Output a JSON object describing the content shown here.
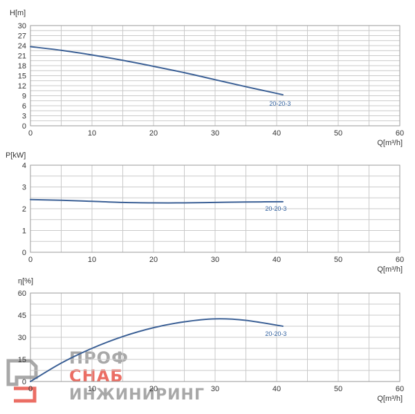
{
  "chart_data": [
    {
      "type": "line",
      "ylabel": "H[m]",
      "xlabel": "Q[m³/h]",
      "xlim": [
        0,
        60
      ],
      "ylim": [
        0,
        30
      ],
      "xticks": [
        0,
        10,
        20,
        30,
        40,
        50,
        60
      ],
      "yticks": [
        0,
        3,
        6,
        9,
        12,
        15,
        18,
        21,
        24,
        27,
        30
      ],
      "grid": true,
      "series": [
        {
          "name": "20-20-3",
          "color": "#3a5f95",
          "x": [
            0,
            5,
            10,
            15,
            20,
            25,
            30,
            35,
            41
          ],
          "y": [
            23.7,
            22.6,
            21.2,
            19.6,
            17.8,
            15.9,
            13.8,
            11.7,
            9.3
          ]
        }
      ]
    },
    {
      "type": "line",
      "ylabel": "P[kW]",
      "xlabel": "Q[m³/h]",
      "xlim": [
        0,
        60
      ],
      "ylim": [
        0,
        4
      ],
      "xticks": [
        0,
        10,
        20,
        30,
        40,
        50,
        60
      ],
      "yticks": [
        0,
        1,
        2,
        3,
        4
      ],
      "grid": true,
      "series": [
        {
          "name": "20-20-3",
          "color": "#3a5f95",
          "x": [
            0,
            5,
            10,
            15,
            20,
            25,
            30,
            35,
            41
          ],
          "y": [
            2.42,
            2.39,
            2.34,
            2.29,
            2.27,
            2.27,
            2.29,
            2.31,
            2.32
          ]
        }
      ]
    },
    {
      "type": "line",
      "ylabel": "η[%]",
      "xlabel": "Q[m³/h]",
      "xlim": [
        0,
        60
      ],
      "ylim": [
        0,
        60
      ],
      "xticks": [
        0,
        10,
        20,
        30,
        40,
        50,
        60
      ],
      "yticks": [
        0,
        15,
        30,
        45,
        60
      ],
      "grid": true,
      "series": [
        {
          "name": "20-20-3",
          "color": "#3a5f95",
          "x": [
            0,
            5,
            10,
            15,
            20,
            25,
            30,
            35,
            41
          ],
          "y": [
            0,
            12.5,
            22.5,
            30.5,
            36.5,
            40.5,
            42.5,
            41.5,
            37.5
          ]
        }
      ]
    }
  ],
  "watermark": {
    "line1": "ПРОФ",
    "line2": "СНАБ",
    "line3": "ИНЖИНИРИНГ",
    "color_red": "#e8554a",
    "color_gray": "#9a9a9a"
  }
}
